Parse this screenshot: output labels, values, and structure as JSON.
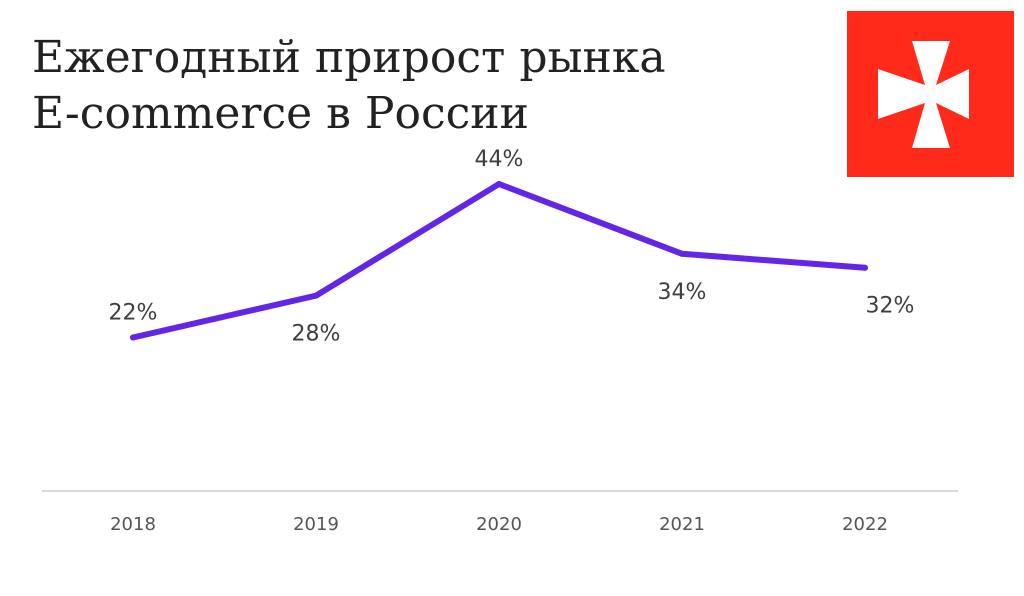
{
  "header": {
    "title_line1": "Ежегодный прирост рынка",
    "title_line2": "E-commerce в России"
  },
  "logo": {
    "icon": "white-cross-pattee-icon",
    "background_color": "#ff2a1a",
    "cross_color": "#ffffff"
  },
  "chart_data": {
    "type": "line",
    "categories": [
      "2018",
      "2019",
      "2020",
      "2021",
      "2022"
    ],
    "values": [
      22,
      28,
      44,
      34,
      32
    ],
    "data_labels": [
      "22%",
      "28%",
      "44%",
      "34%",
      "32%"
    ],
    "label_positions": [
      "above",
      "below",
      "above",
      "below",
      "below"
    ],
    "title": "Ежегодный прирост рынка E-commerce в России",
    "xlabel": "",
    "ylabel": "",
    "unit": "%",
    "ylim": [
      0,
      50
    ],
    "grid": false,
    "line_color": "#6326e6",
    "axis_color": "#d9d9d9"
  }
}
